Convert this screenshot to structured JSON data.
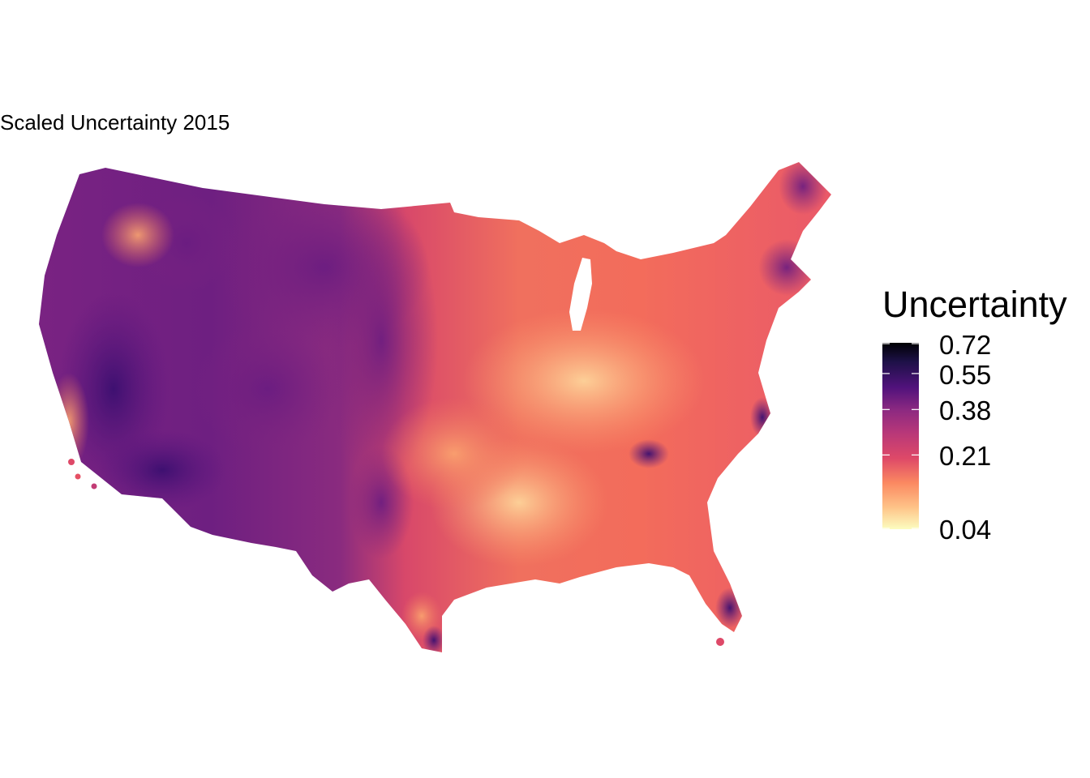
{
  "map": {
    "title": "Scaled Uncertainty 2015",
    "region": "Contiguous United States",
    "colormap": "magma",
    "colors": {
      "very_low": "#fcfdbf",
      "low": "#fec287",
      "mid_low": "#fb8861",
      "mid": "#de4968",
      "mid_high": "#b73779",
      "high": "#8c2981",
      "very_high": "#51127c",
      "max": "#000004"
    }
  },
  "legend": {
    "title": "Uncertainty",
    "ticks": [
      {
        "label": "0.72",
        "value": 0.72
      },
      {
        "label": "0.55",
        "value": 0.55
      },
      {
        "label": "0.38",
        "value": 0.38
      },
      {
        "label": "0.21",
        "value": 0.21
      },
      {
        "label": "0.04",
        "value": 0.04
      }
    ],
    "scale": "sqrt",
    "range": [
      0.04,
      0.72
    ]
  }
}
